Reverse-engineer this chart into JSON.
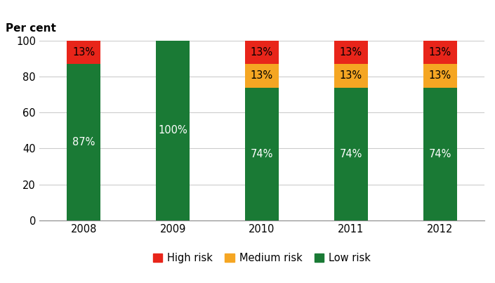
{
  "categories": [
    "2008",
    "2009",
    "2010",
    "2011",
    "2012"
  ],
  "low_risk": [
    87,
    100,
    74,
    74,
    74
  ],
  "medium_risk": [
    0,
    0,
    13,
    13,
    13
  ],
  "high_risk": [
    13,
    0,
    13,
    13,
    13
  ],
  "low_color": "#1a7a35",
  "medium_color": "#f5a623",
  "high_color": "#e8251a",
  "low_label_color": "#ffffff",
  "high_label_color": "#000000",
  "med_label_color": "#000000",
  "ylabel": "Per cent",
  "ylim": [
    0,
    100
  ],
  "yticks": [
    0,
    20,
    40,
    60,
    80,
    100
  ],
  "bar_width": 0.38,
  "legend_labels": [
    "High risk",
    "Medium risk",
    "Low risk"
  ],
  "background_color": "#ffffff",
  "grid_color": "#cccccc",
  "label_fontsize": 10.5
}
